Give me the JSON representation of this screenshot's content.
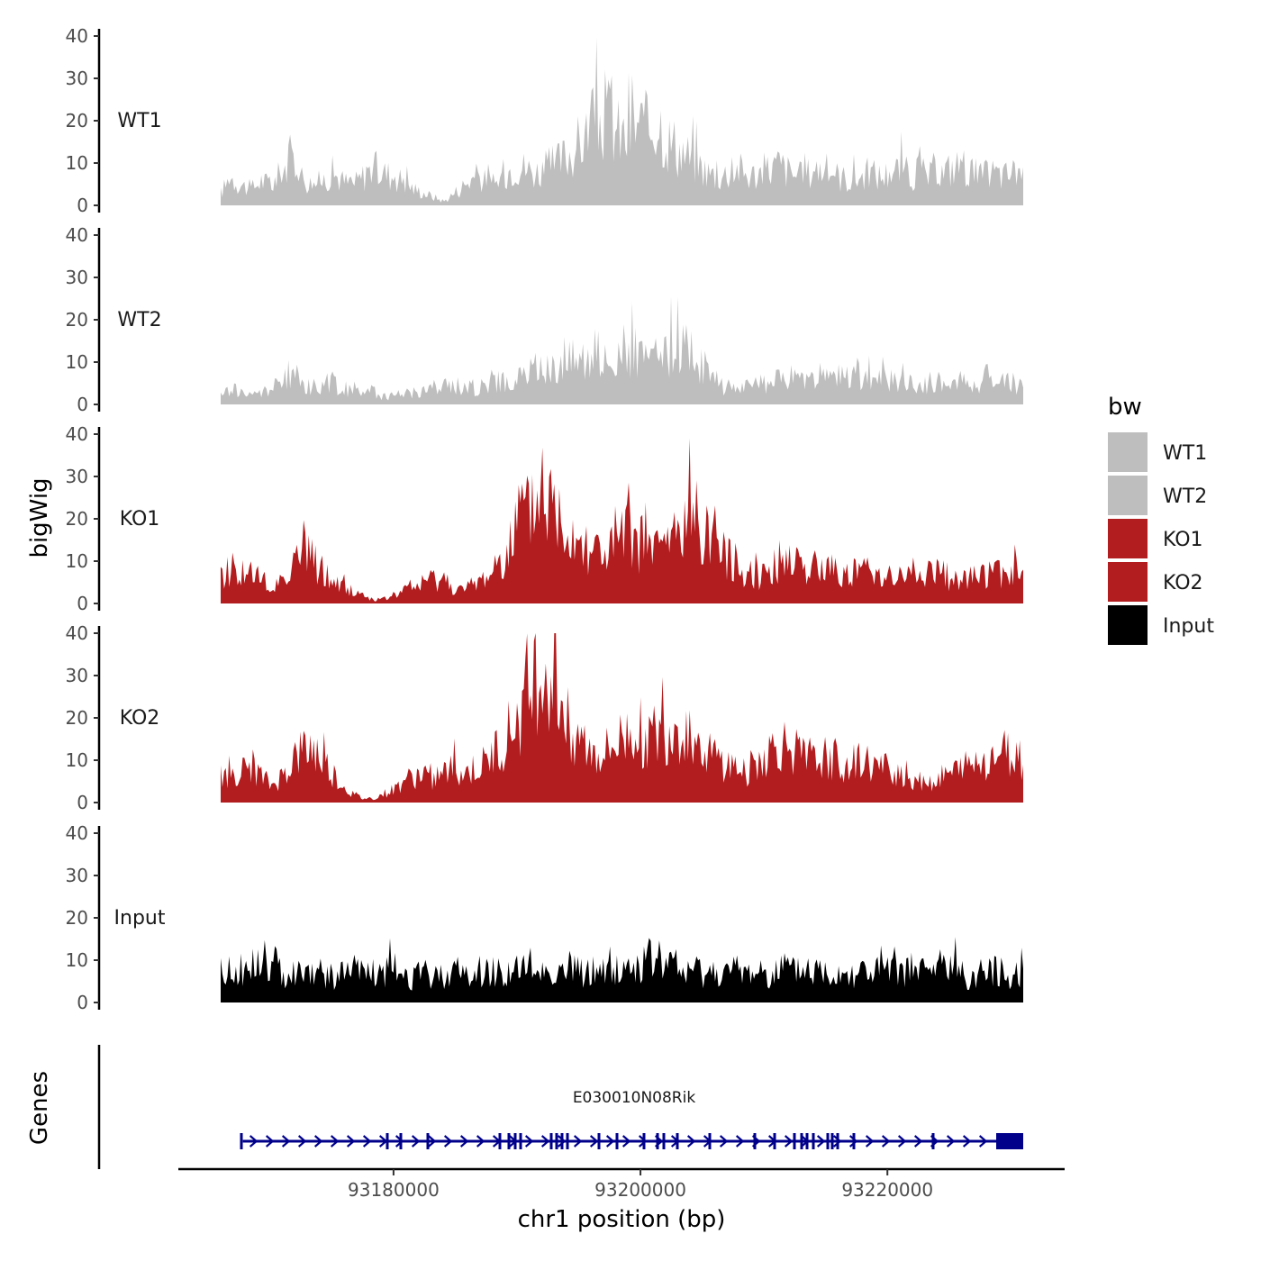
{
  "chart_data": {
    "type": "area",
    "description_free": true,
    "xlabel": "chr1 position (bp)",
    "xlim": [
      93166000,
      93231000
    ],
    "x_ticks": [
      93180000,
      93200000,
      93220000
    ],
    "x_tick_labels": [
      "93180000",
      "93200000",
      "93220000"
    ],
    "ylabel": "bigWig",
    "ylim": [
      0,
      40
    ],
    "y_ticks": [
      0,
      10,
      20,
      30,
      40
    ],
    "y_tick_labels": [
      "0",
      "10",
      "20",
      "30",
      "40"
    ],
    "x_start": 93166000,
    "x_end": 93231000,
    "series": [
      {
        "name": "WT1",
        "color": "#bebebe",
        "values": [
          3,
          7,
          5,
          4,
          6,
          5,
          8,
          12,
          7,
          5,
          6,
          8,
          6,
          5,
          7,
          9,
          8,
          7,
          6,
          4,
          3,
          2,
          1,
          3,
          5,
          7,
          6,
          5,
          8,
          10,
          9,
          8,
          9,
          10,
          12,
          14,
          17,
          20,
          22,
          18,
          16,
          20,
          18,
          22,
          16,
          14,
          12,
          10,
          8,
          7,
          8,
          9,
          7,
          8,
          9,
          10,
          8,
          7,
          8,
          9,
          8,
          7,
          6,
          7,
          8,
          7,
          8,
          9,
          7,
          8,
          7,
          8,
          9,
          10,
          8,
          7,
          8,
          7,
          8,
          9
        ]
      },
      {
        "name": "WT2",
        "color": "#bebebe",
        "values": [
          2,
          4,
          3,
          2,
          3,
          4,
          5,
          8,
          5,
          4,
          5,
          5,
          4,
          3,
          4,
          3,
          2,
          2,
          3,
          3,
          3,
          4,
          4,
          5,
          4,
          4,
          5,
          6,
          5,
          6,
          7,
          9,
          8,
          10,
          11,
          12,
          13,
          12,
          11,
          12,
          13,
          12,
          10,
          11,
          12,
          14,
          13,
          11,
          8,
          5,
          4,
          5,
          4,
          5,
          5,
          6,
          7,
          6,
          6,
          7,
          6,
          7,
          6,
          7,
          6,
          7,
          6,
          5,
          5,
          4,
          6,
          5,
          5,
          6,
          5,
          6,
          7,
          6,
          5,
          4
        ]
      },
      {
        "name": "KO1",
        "color": "#b21d1f",
        "values": [
          6,
          9,
          8,
          7,
          5,
          3,
          6,
          10,
          12,
          11,
          8,
          5,
          4,
          3,
          2,
          1,
          1,
          2,
          3,
          4,
          5,
          6,
          6,
          4,
          3,
          5,
          6,
          9,
          13,
          17,
          20,
          24,
          26,
          22,
          20,
          17,
          15,
          13,
          12,
          14,
          16,
          15,
          14,
          13,
          15,
          17,
          19,
          21,
          18,
          14,
          11,
          9,
          8,
          7,
          8,
          10,
          11,
          10,
          9,
          8,
          9,
          8,
          7,
          8,
          7,
          8,
          7,
          6,
          7,
          6,
          8,
          7,
          6,
          7,
          6,
          7,
          8,
          7,
          7,
          8
        ]
      },
      {
        "name": "KO2",
        "color": "#b21d1f",
        "values": [
          6,
          8,
          7,
          9,
          6,
          4,
          6,
          10,
          12,
          13,
          10,
          7,
          4,
          2,
          1,
          1,
          2,
          3,
          5,
          6,
          7,
          6,
          7,
          8,
          7,
          8,
          9,
          12,
          15,
          19,
          23,
          30,
          32,
          26,
          22,
          17,
          13,
          11,
          12,
          14,
          16,
          18,
          15,
          16,
          17,
          18,
          17,
          15,
          12,
          10,
          9,
          8,
          8,
          10,
          12,
          14,
          13,
          11,
          9,
          10,
          11,
          10,
          9,
          10,
          9,
          8,
          8,
          7,
          6,
          6,
          5,
          6,
          7,
          8,
          9,
          10,
          11,
          12,
          11,
          9
        ]
      },
      {
        "name": "Input",
        "color": "#000000",
        "values": [
          7,
          8,
          7,
          8,
          9,
          8,
          7,
          8,
          7,
          8,
          7,
          6,
          7,
          8,
          7,
          6,
          7,
          8,
          7,
          6,
          7,
          6,
          7,
          8,
          7,
          6,
          7,
          8,
          7,
          8,
          7,
          8,
          7,
          8,
          7,
          8,
          7,
          8,
          7,
          8,
          8,
          9,
          10,
          11,
          9,
          8,
          7,
          8,
          7,
          8,
          7,
          8,
          7,
          8,
          7,
          8,
          7,
          8,
          7,
          8,
          7,
          8,
          7,
          8,
          7,
          8,
          7,
          8,
          7,
          8,
          7,
          10,
          8,
          7,
          6,
          7,
          8,
          7,
          7,
          8
        ]
      }
    ],
    "legend": {
      "title": "bw",
      "position": "right",
      "entries": [
        {
          "label": "WT1",
          "color": "#bebebe"
        },
        {
          "label": "WT2",
          "color": "#bebebe"
        },
        {
          "label": "KO1",
          "color": "#b21d1f"
        },
        {
          "label": "KO2",
          "color": "#b21d1f"
        },
        {
          "label": "Input",
          "color": "#000000"
        }
      ]
    },
    "genes_track": {
      "label": "Genes",
      "color": "#00008b",
      "genes": [
        {
          "name": "E030010N08Rik",
          "start": 93167800,
          "end": 93231000,
          "strand": "+"
        }
      ]
    }
  }
}
